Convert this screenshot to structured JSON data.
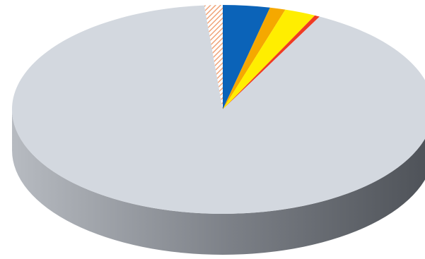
{
  "chart_data": {
    "type": "pie",
    "style": "3d-tilted",
    "title": "",
    "legend": "none",
    "data_labels": "none",
    "start": "top",
    "direction": "clockwise",
    "slices": [
      {
        "value": 3.6,
        "color": "#0b63b8",
        "pattern": "none"
      },
      {
        "value": 1.2,
        "color": "#f5a800",
        "pattern": "none"
      },
      {
        "value": 2.4,
        "color": "#ffee00",
        "pattern": "none"
      },
      {
        "value": 0.4,
        "color": "#ef3b24",
        "pattern": "none"
      },
      {
        "value": 91.0,
        "color": "#d3d8df",
        "pattern": "none"
      },
      {
        "value": 1.4,
        "color": "#f0a479",
        "pattern": "hatched"
      }
    ],
    "side_colors": {
      "light": "#b7bbc1",
      "mid": "#7c8087",
      "dark": "#4d5157"
    }
  }
}
